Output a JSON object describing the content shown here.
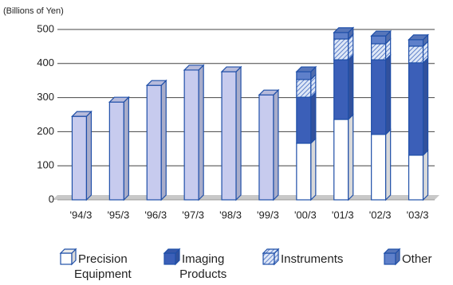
{
  "chart_data": {
    "type": "bar3d_stacked",
    "y_axis_label": "(Billions of Yen)",
    "categories": [
      "'94/3",
      "'95/3",
      "'96/3",
      "'97/3",
      "'98/3",
      "'99/3",
      "'00/3",
      "'01/3",
      "'02/3",
      "'03/3"
    ],
    "series": [
      {
        "color": "#c7cbee",
        "values": [
          245,
          287,
          336,
          381,
          376,
          308,
          null,
          null,
          null,
          null
        ]
      },
      {
        "name": "Precision Equipment",
        "color": "#ffffff",
        "values": [
          null,
          null,
          null,
          null,
          null,
          null,
          166,
          236,
          192,
          131
        ]
      },
      {
        "name": "Imaging Products",
        "color": "#3b5fb8",
        "values": [
          null,
          null,
          null,
          null,
          null,
          null,
          135,
          175,
          219,
          271
        ]
      },
      {
        "name": "Instruments",
        "color": "#8fb0e2",
        "pattern": "hatch",
        "values": [
          null,
          null,
          null,
          null,
          null,
          null,
          52,
          61,
          47,
          49
        ]
      },
      {
        "name": "Other",
        "color": "#5f80ca",
        "values": [
          null,
          null,
          null,
          null,
          null,
          null,
          23,
          19,
          23,
          19
        ]
      }
    ],
    "outline": "#1f4fa8",
    "ylim": [
      0,
      500
    ],
    "yticks": [
      0,
      100,
      200,
      300,
      400,
      500
    ],
    "grid": true,
    "legend": "bottom"
  }
}
